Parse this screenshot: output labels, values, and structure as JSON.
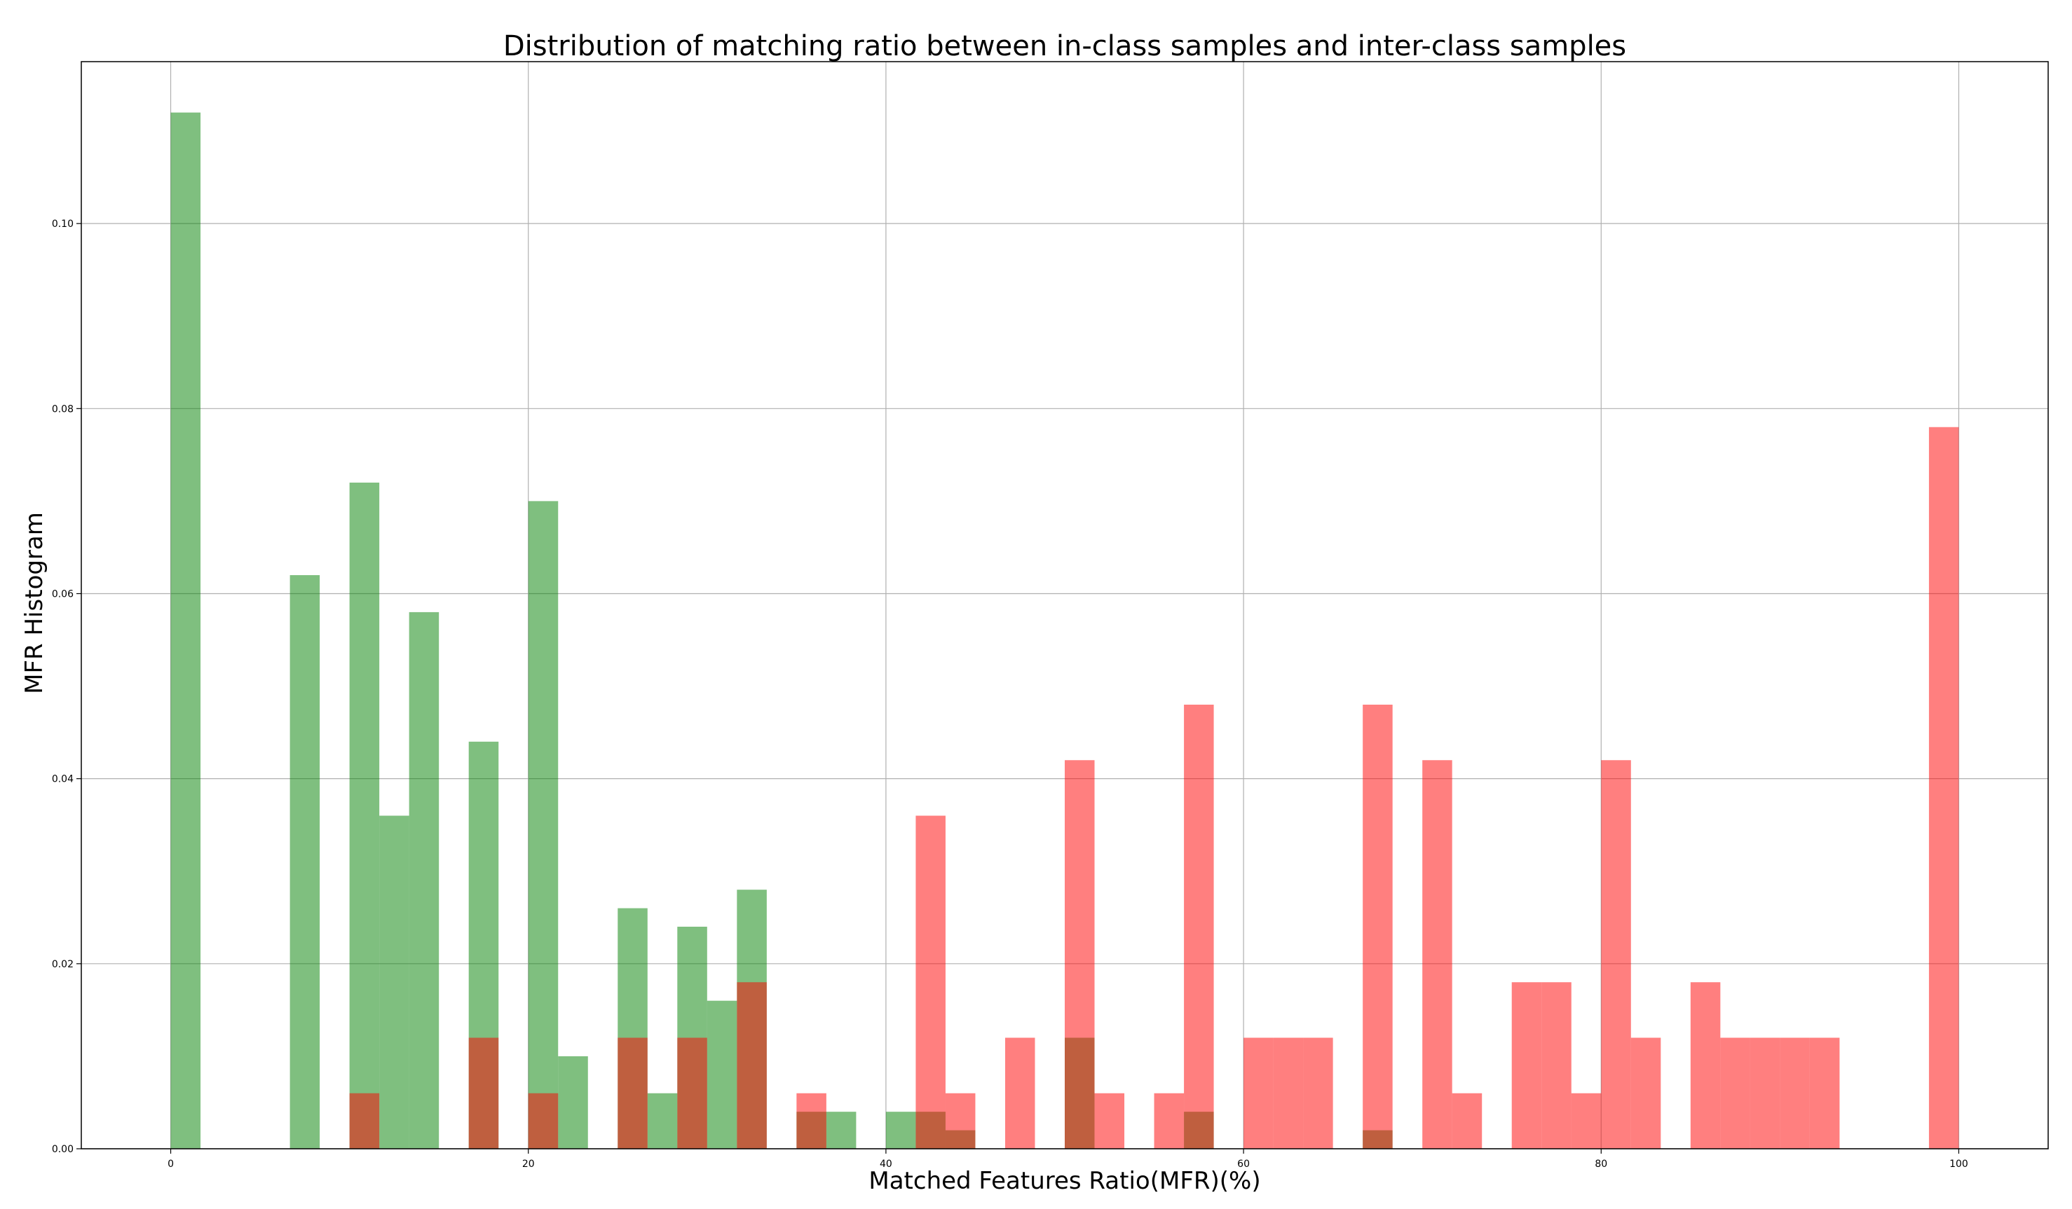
{
  "chart_data": {
    "type": "bar",
    "title": "Distribution of matching ratio between in-class samples and inter-class samples",
    "xlabel": "Matched Features Ratio(MFR)(%)",
    "ylabel": "MFR Histogram",
    "xlim": [
      -5,
      105
    ],
    "ylim": [
      0,
      0.1175
    ],
    "bin_width": 1.6667,
    "grid": true,
    "x_ticks": [
      0,
      20,
      40,
      60,
      80,
      100
    ],
    "x_tick_labels": [
      "0",
      "20",
      "40",
      "60",
      "80",
      "100"
    ],
    "y_ticks": [
      0.0,
      0.02,
      0.04,
      0.06,
      0.08,
      0.1
    ],
    "y_tick_labels": [
      "0.00",
      "0.02",
      "0.04",
      "0.06",
      "0.08",
      "0.10"
    ],
    "colors": {
      "green": "#008000",
      "red": "#ff0000",
      "opacity": 0.5
    },
    "series": [
      {
        "color": "#008000",
        "bins": [
          [
            0,
            0.112
          ],
          [
            6.667,
            0.062
          ],
          [
            10,
            0.072
          ],
          [
            11.667,
            0.036
          ],
          [
            13.333,
            0.058
          ],
          [
            16.667,
            0.044
          ],
          [
            20,
            0.07
          ],
          [
            21.667,
            0.01
          ],
          [
            25,
            0.026
          ],
          [
            26.667,
            0.006
          ],
          [
            28.333,
            0.024
          ],
          [
            30,
            0.016
          ],
          [
            31.667,
            0.028
          ],
          [
            35,
            0.004
          ],
          [
            36.667,
            0.004
          ],
          [
            40,
            0.004
          ],
          [
            41.667,
            0.004
          ],
          [
            43.333,
            0.002
          ],
          [
            50,
            0.012
          ],
          [
            56.667,
            0.004
          ],
          [
            66.667,
            0.002
          ]
        ]
      },
      {
        "color": "#ff0000",
        "bins": [
          [
            10,
            0.006
          ],
          [
            16.667,
            0.012
          ],
          [
            20,
            0.006
          ],
          [
            25,
            0.012
          ],
          [
            28.333,
            0.012
          ],
          [
            31.667,
            0.018
          ],
          [
            35,
            0.006
          ],
          [
            41.667,
            0.036
          ],
          [
            43.333,
            0.006
          ],
          [
            46.667,
            0.012
          ],
          [
            50,
            0.042
          ],
          [
            51.667,
            0.006
          ],
          [
            55,
            0.006
          ],
          [
            56.667,
            0.048
          ],
          [
            60,
            0.012
          ],
          [
            61.667,
            0.012
          ],
          [
            63.333,
            0.012
          ],
          [
            66.667,
            0.048
          ],
          [
            70,
            0.042
          ],
          [
            71.667,
            0.006
          ],
          [
            75,
            0.018
          ],
          [
            76.667,
            0.018
          ],
          [
            78.333,
            0.006
          ],
          [
            80,
            0.042
          ],
          [
            81.667,
            0.012
          ],
          [
            85,
            0.018
          ],
          [
            86.667,
            0.012
          ],
          [
            88.333,
            0.012
          ],
          [
            90,
            0.012
          ],
          [
            91.667,
            0.012
          ],
          [
            98.333,
            0.078
          ]
        ]
      }
    ]
  }
}
